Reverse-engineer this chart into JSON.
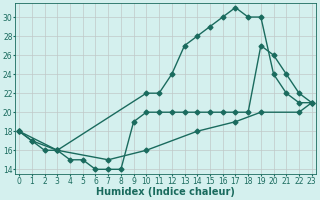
{
  "line1_x": [
    0,
    1,
    2,
    3,
    10,
    11,
    12,
    13,
    14,
    15,
    16,
    17,
    18,
    19,
    20,
    21,
    22,
    23
  ],
  "line1_y": [
    18,
    17,
    16,
    16,
    22,
    22,
    24,
    27,
    28,
    29,
    30,
    31,
    30,
    30,
    24,
    22,
    21,
    21
  ],
  "line2_x": [
    0,
    1,
    3,
    4,
    5,
    6,
    7,
    8,
    9,
    10,
    11,
    12,
    13,
    14,
    15,
    16,
    17,
    18,
    19,
    20,
    21,
    22,
    23
  ],
  "line2_y": [
    18,
    17,
    16,
    15,
    15,
    14,
    14,
    14,
    19,
    20,
    20,
    20,
    20,
    20,
    20,
    20,
    20,
    20,
    27,
    26,
    24,
    22,
    21
  ],
  "line3_x": [
    0,
    3,
    7,
    10,
    14,
    17,
    19,
    22,
    23
  ],
  "line3_y": [
    18,
    16,
    15,
    16,
    18,
    19,
    20,
    20,
    21
  ],
  "line_color": "#1a6b5e",
  "bg_color": "#d4f0ee",
  "grid_color": "#c0c8c8",
  "xlabel": "Humidex (Indice chaleur)",
  "xlabel_style": "bold",
  "xlabel_fontsize": 7,
  "ylabel_ticks": [
    14,
    16,
    18,
    20,
    22,
    24,
    26,
    28,
    30
  ],
  "xtick_labels": [
    "0",
    "1",
    "2",
    "3",
    "4",
    "5",
    "6",
    "7",
    "8",
    "9",
    "10",
    "11",
    "12",
    "13",
    "14",
    "15",
    "16",
    "17",
    "18",
    "19",
    "20",
    "21",
    "22",
    "23"
  ],
  "xlim": [
    -0.3,
    23.3
  ],
  "ylim": [
    13.5,
    31.5
  ],
  "tick_fontsize": 5.5,
  "marker": "D",
  "markersize": 2.5,
  "linewidth": 1.0
}
